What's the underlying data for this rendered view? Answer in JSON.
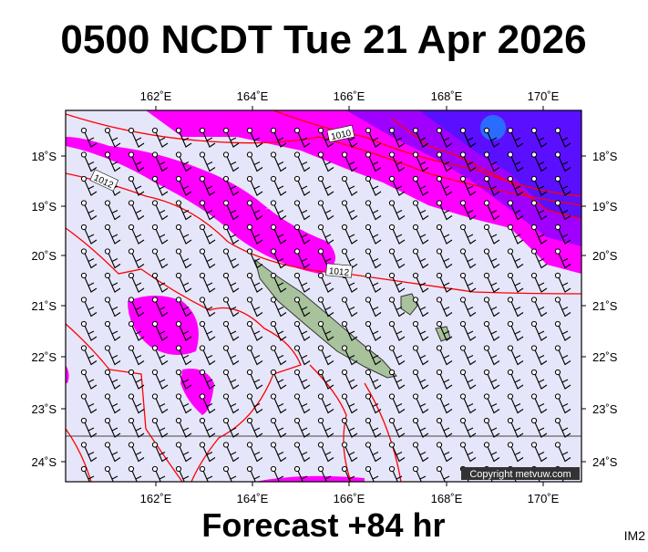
{
  "header": {
    "title": "0500 NCDT Tue 21 Apr 2026"
  },
  "map": {
    "lon_labels": [
      "162˚E",
      "164˚E",
      "166˚E",
      "168˚E",
      "170˚E"
    ],
    "lat_labels": [
      "18˚S",
      "19˚S",
      "20˚S",
      "21˚S",
      "22˚S",
      "23˚S",
      "24˚S"
    ],
    "isobar_labels": [
      "1012",
      "1010",
      "1012"
    ],
    "copyright": "Copyright metvuw.com"
  },
  "footer": {
    "title": "Forecast +84 hr",
    "code": "IM2"
  }
}
